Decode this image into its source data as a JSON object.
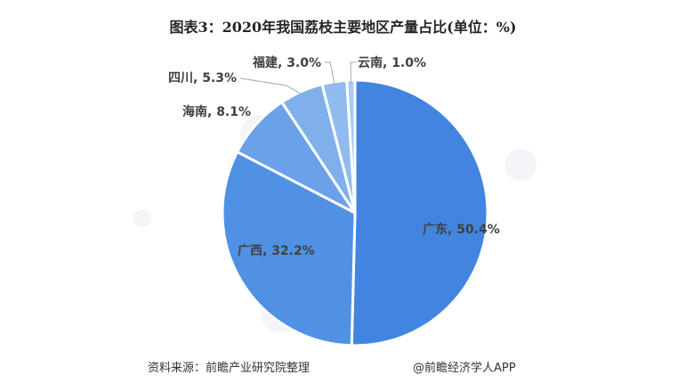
{
  "title": "图表3：2020年我国荔枝主要地区产量占比(单位：%)",
  "footer": {
    "source": "资料来源：前瞻产业研究院整理",
    "credit": "@前瞻经济学人APP"
  },
  "colors": {
    "slices": [
      "#4285e0",
      "#5191e4",
      "#6aa1e8",
      "#7fb0ec",
      "#8fbbef",
      "#a9cbf3"
    ],
    "separator": "#ffffff",
    "label": "#404040",
    "leader": "#a6a6a6"
  },
  "labels": {
    "guangdong": "广东, 50.4%",
    "guangxi": "广西, 32.2%",
    "hainan": "海南, 8.1%",
    "sichuan": "四川, 5.3%",
    "fujian": "福建, 3.0%",
    "yunnan": "云南, 1.0%"
  },
  "chart_data": {
    "type": "pie",
    "title": "图表3：2020年我国荔枝主要地区产量占比(单位：%)",
    "categories": [
      "广东",
      "广西",
      "海南",
      "四川",
      "福建",
      "云南"
    ],
    "values": [
      50.4,
      32.2,
      8.1,
      5.3,
      3.0,
      1.0
    ],
    "unit": "%",
    "start_angle": "12 o'clock, clockwise",
    "data_labels": [
      "广东, 50.4%",
      "广西, 32.2%",
      "海南, 8.1%",
      "四川, 5.3%",
      "福建, 3.0%",
      "云南, 1.0%"
    ],
    "legend": "none"
  }
}
